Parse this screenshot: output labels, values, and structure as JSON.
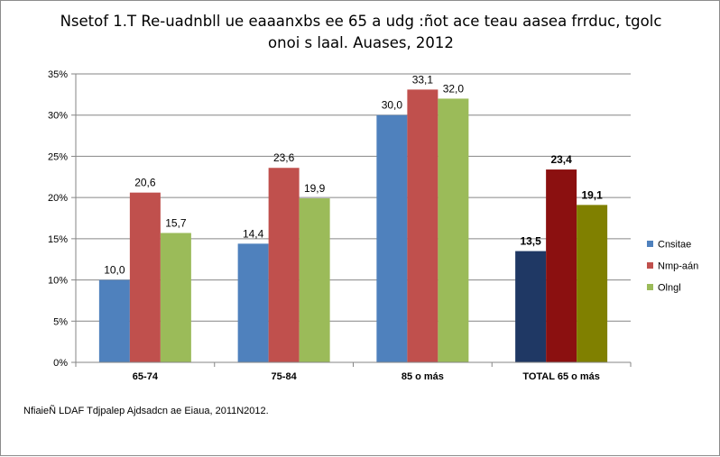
{
  "chart_data": {
    "type": "bar",
    "title_lines": [
      "Nsetof 1.T Re-uadnbll ue eaaanxbs ee 65 a udg :ñot ace teau aasea frrduc, tgolc",
      "onoi s laal. Auases, 2012"
    ],
    "xlabel": "",
    "ylabel": "",
    "ylim": [
      0,
      35
    ],
    "yticks": [
      0,
      5,
      10,
      15,
      20,
      25,
      30,
      35
    ],
    "ytick_labels": [
      "0%",
      "5%",
      "10%",
      "15%",
      "20%",
      "25%",
      "30%",
      "35%"
    ],
    "y_unit": "%",
    "grid": true,
    "legend_position": "right",
    "categories": [
      "65-74",
      "75-84",
      "85 o más",
      "TOTAL 65 o más"
    ],
    "series": [
      {
        "name": "Cnsitae",
        "values": [
          10.0,
          14.4,
          30.0,
          13.5
        ],
        "labels": [
          "10,0",
          "14,4",
          "30,0",
          "13,5"
        ],
        "color": "#4f81bd",
        "highlight_color": "#1f3864"
      },
      {
        "name": "Nmp-aán",
        "values": [
          20.6,
          23.6,
          33.1,
          23.4
        ],
        "labels": [
          "20,6",
          "23,6",
          "33,1",
          "23,4"
        ],
        "color": "#c0504d",
        "highlight_color": "#8b1010"
      },
      {
        "name": "Olngl",
        "values": [
          15.7,
          19.9,
          32.0,
          19.1
        ],
        "labels": [
          "15,7",
          "19,9",
          "32,0",
          "19,1"
        ],
        "color": "#9bbb59",
        "highlight_color": "#808000"
      }
    ],
    "highlight_category_index": 3,
    "gridline_color": "#868686",
    "axis_color": "#868686"
  },
  "source_note": "NfiaieÑ LDAF Tdjpalep Ajdsadcn ae Eiaua, 2011N2012."
}
